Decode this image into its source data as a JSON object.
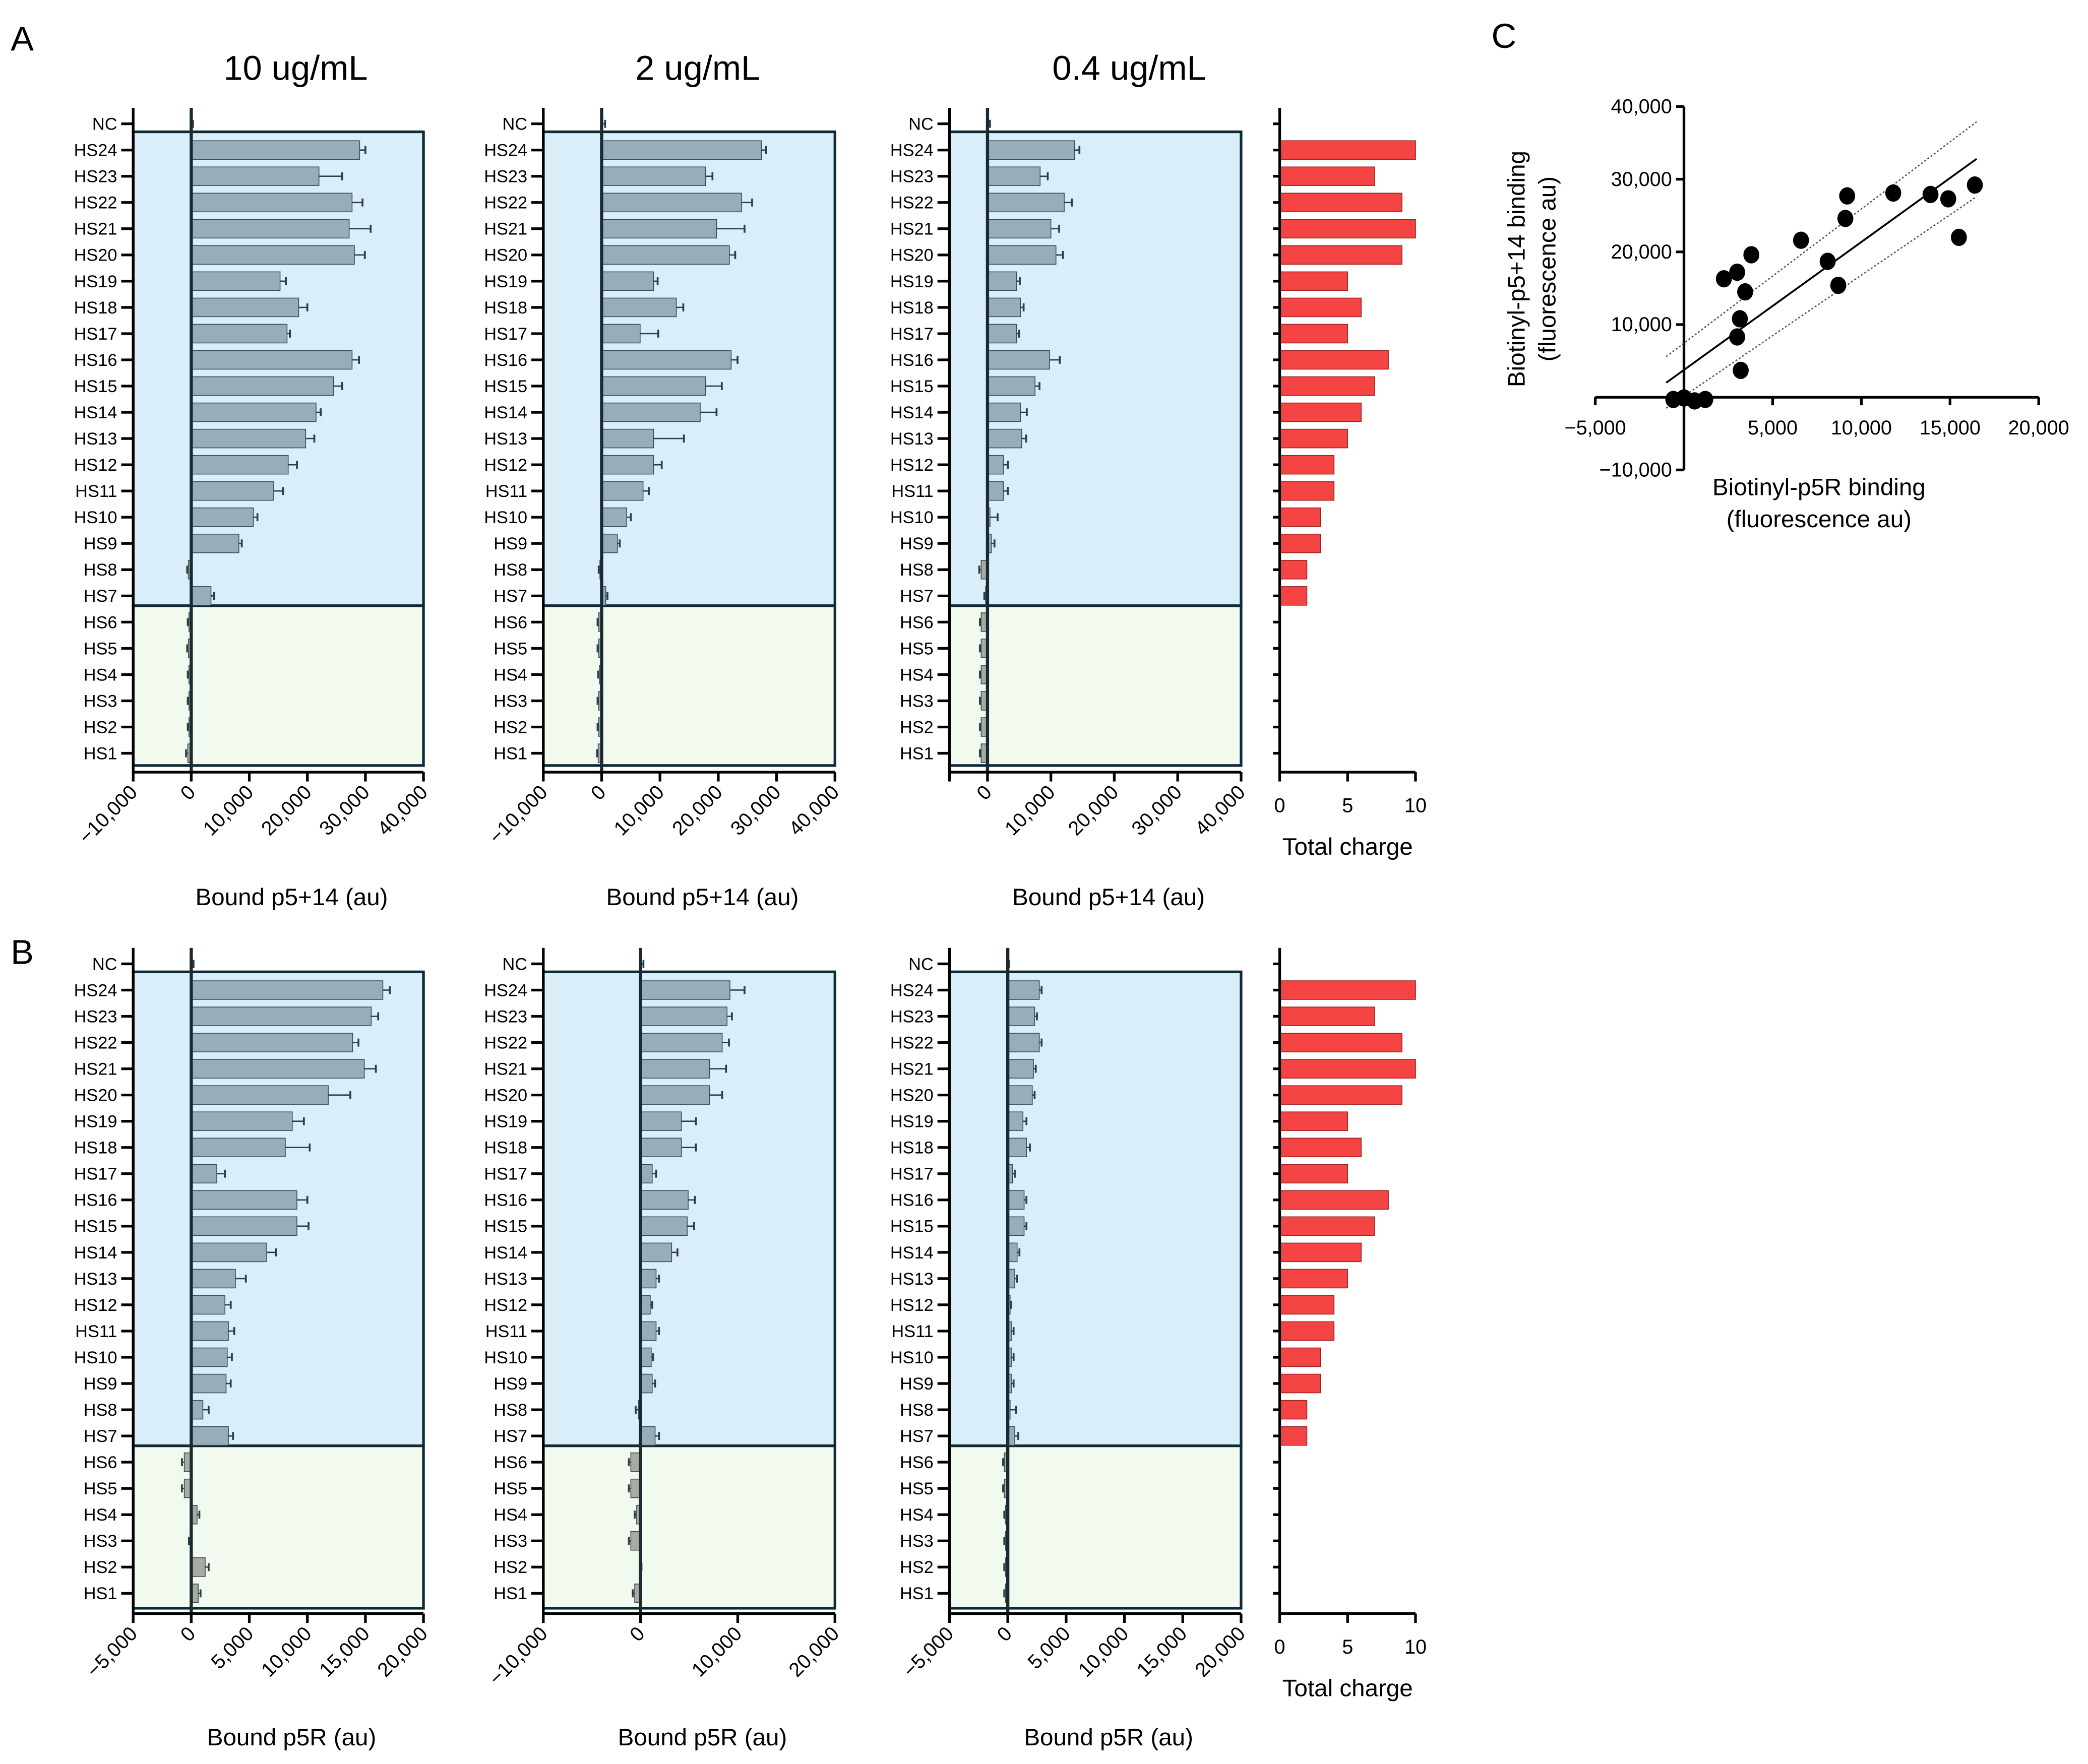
{
  "figure_labels": {
    "a": "A",
    "b": "B",
    "c": "C"
  },
  "colors": {
    "bar": "#97aeba",
    "bar_neg": "#a8aca0",
    "blue_region": "#daeef9",
    "green_region": "#f2f9ee",
    "charge": "#f44444",
    "frame": "#0e2a36"
  },
  "chart_data": [
    {
      "id": "A1",
      "type": "bar",
      "orientation": "horizontal",
      "title": "10 ug/mL",
      "xlabel": "Bound p5+14 (au)",
      "xlim": [
        -10000,
        40000
      ],
      "xticks": [
        -10000,
        0,
        10000,
        20000,
        30000,
        40000
      ],
      "xtick_labels": [
        "−10,000",
        "0",
        "10,000",
        "20,000",
        "30,000",
        "40,000"
      ],
      "categories": [
        "NC",
        "HS24",
        "HS23",
        "HS22",
        "HS21",
        "HS20",
        "HS19",
        "HS18",
        "HS17",
        "HS16",
        "HS15",
        "HS14",
        "HS13",
        "HS12",
        "HS11",
        "HS10",
        "HS9",
        "HS8",
        "HS7",
        "HS6",
        "HS5",
        "HS4",
        "HS3",
        "HS2",
        "HS1"
      ],
      "values": [
        0,
        29000,
        22000,
        27700,
        27200,
        28100,
        15300,
        18500,
        16500,
        27700,
        24500,
        21500,
        19700,
        16700,
        14200,
        10700,
        8200,
        -500,
        3400,
        -400,
        -500,
        -400,
        -400,
        -400,
        -600
      ],
      "errors": [
        300,
        1000,
        4000,
        1800,
        3700,
        1800,
        1000,
        1500,
        500,
        1200,
        1500,
        800,
        1500,
        1500,
        1600,
        700,
        500,
        200,
        500,
        200,
        200,
        200,
        200,
        200,
        300
      ]
    },
    {
      "id": "A2",
      "type": "bar",
      "orientation": "horizontal",
      "title": "2 ug/mL",
      "xlabel": "Bound p5+14 (au)",
      "xlim": [
        -10000,
        40000
      ],
      "xticks": [
        -10000,
        0,
        10000,
        20000,
        30000,
        40000
      ],
      "xtick_labels": [
        "−10,000",
        "0",
        "10,000",
        "20,000",
        "30,000",
        "40,000"
      ],
      "categories": [
        "NC",
        "HS24",
        "HS23",
        "HS22",
        "HS21",
        "HS20",
        "HS19",
        "HS18",
        "HS17",
        "HS16",
        "HS15",
        "HS14",
        "HS13",
        "HS12",
        "HS11",
        "HS10",
        "HS9",
        "HS8",
        "HS7",
        "HS6",
        "HS5",
        "HS4",
        "HS3",
        "HS2",
        "HS1"
      ],
      "values": [
        200,
        27400,
        17800,
        24000,
        19700,
        21900,
        8900,
        12800,
        6600,
        22200,
        17800,
        16900,
        8900,
        8900,
        7100,
        4300,
        2700,
        -300,
        700,
        -500,
        -500,
        -400,
        -500,
        -500,
        -600
      ],
      "errors": [
        400,
        800,
        1200,
        1800,
        4800,
        1000,
        700,
        1200,
        3100,
        1100,
        2800,
        2800,
        5200,
        1400,
        1000,
        700,
        400,
        200,
        300,
        200,
        200,
        200,
        200,
        200,
        200
      ]
    },
    {
      "id": "A3",
      "type": "bar",
      "orientation": "horizontal",
      "title": "0.4 ug/mL",
      "xlabel": "Bound p5+14 (au)",
      "xlim": [
        -6000,
        40000
      ],
      "xticks": [
        -6000,
        0,
        10000,
        20000,
        30000,
        40000
      ],
      "xtick_labels": [
        "",
        "0",
        "10,000",
        "20,000",
        "30,000",
        "40,000"
      ],
      "categories": [
        "NC",
        "HS24",
        "HS23",
        "HS22",
        "HS21",
        "HS20",
        "HS19",
        "HS18",
        "HS17",
        "HS16",
        "HS15",
        "HS14",
        "HS13",
        "HS12",
        "HS11",
        "HS10",
        "HS9",
        "HS8",
        "HS7",
        "HS6",
        "HS5",
        "HS4",
        "HS3",
        "HS2",
        "HS1"
      ],
      "values": [
        100,
        13700,
        8300,
        12100,
        10000,
        10800,
        4600,
        5200,
        4600,
        9800,
        7500,
        5200,
        5400,
        2500,
        2500,
        400,
        600,
        -1000,
        -300,
        -1000,
        -1000,
        -1000,
        -1000,
        -1000,
        -1000
      ],
      "errors": [
        300,
        800,
        1200,
        1200,
        1300,
        1100,
        500,
        500,
        400,
        1600,
        700,
        1000,
        700,
        700,
        700,
        1200,
        500,
        300,
        200,
        200,
        200,
        200,
        200,
        200,
        200
      ]
    },
    {
      "id": "A4",
      "type": "bar",
      "orientation": "horizontal",
      "xlabel": "Total charge",
      "xlim": [
        0,
        10
      ],
      "xticks": [
        0,
        5,
        10
      ],
      "xtick_labels": [
        "0",
        "5",
        "10"
      ],
      "categories": [
        "NC",
        "HS24",
        "HS23",
        "HS22",
        "HS21",
        "HS20",
        "HS19",
        "HS18",
        "HS17",
        "HS16",
        "HS15",
        "HS14",
        "HS13",
        "HS12",
        "HS11",
        "HS10",
        "HS9",
        "HS8",
        "HS7",
        "HS6",
        "HS5",
        "HS4",
        "HS3",
        "HS2",
        "HS1"
      ],
      "values": [
        0,
        10,
        7,
        9,
        10,
        9,
        5,
        6,
        5,
        8,
        7,
        6,
        5,
        4,
        4,
        3,
        3,
        2,
        2,
        0,
        0,
        0,
        0,
        0,
        0
      ]
    },
    {
      "id": "B1",
      "type": "bar",
      "orientation": "horizontal",
      "xlabel": "Bound p5R (au)",
      "xlim": [
        -5000,
        20000
      ],
      "xticks": [
        -5000,
        0,
        5000,
        10000,
        15000,
        20000
      ],
      "xtick_labels": [
        "−5,000",
        "0",
        "5,000",
        "10,000",
        "15,000",
        "20,000"
      ],
      "categories": [
        "NC",
        "HS24",
        "HS23",
        "HS22",
        "HS21",
        "HS20",
        "HS19",
        "HS18",
        "HS17",
        "HS16",
        "HS15",
        "HS14",
        "HS13",
        "HS12",
        "HS11",
        "HS10",
        "HS9",
        "HS8",
        "HS7",
        "HS6",
        "HS5",
        "HS4",
        "HS3",
        "HS2",
        "HS1"
      ],
      "values": [
        0,
        16500,
        15500,
        13900,
        14900,
        11800,
        8700,
        8100,
        2200,
        9100,
        9100,
        6500,
        3800,
        2900,
        3200,
        3100,
        3000,
        1000,
        3200,
        -600,
        -600,
        500,
        -100,
        1200,
        600
      ],
      "errors": [
        200,
        600,
        600,
        500,
        1000,
        1900,
        1000,
        2100,
        700,
        900,
        1000,
        800,
        900,
        500,
        500,
        400,
        400,
        500,
        400,
        200,
        200,
        200,
        100,
        300,
        200
      ]
    },
    {
      "id": "B2",
      "type": "bar",
      "orientation": "horizontal",
      "xlabel": "Bound p5R (au)",
      "xlim": [
        -10000,
        20000
      ],
      "xticks": [
        -10000,
        0,
        10000,
        20000
      ],
      "xtick_labels": [
        "−10,000",
        "0",
        "10,000",
        "20,000"
      ],
      "categories": [
        "NC",
        "HS24",
        "HS23",
        "HS22",
        "HS21",
        "HS20",
        "HS19",
        "HS18",
        "HS17",
        "HS16",
        "HS15",
        "HS14",
        "HS13",
        "HS12",
        "HS11",
        "HS10",
        "HS9",
        "HS8",
        "HS7",
        "HS6",
        "HS5",
        "HS4",
        "HS3",
        "HS2",
        "HS1"
      ],
      "values": [
        100,
        9200,
        8900,
        8400,
        7100,
        7100,
        4200,
        4200,
        1200,
        4900,
        4800,
        3200,
        1600,
        1000,
        1600,
        1100,
        1200,
        -200,
        1500,
        -1000,
        -1000,
        -400,
        -1000,
        0,
        -600
      ],
      "errors": [
        200,
        1500,
        500,
        700,
        1700,
        1300,
        1500,
        1500,
        400,
        700,
        700,
        600,
        300,
        200,
        300,
        200,
        300,
        300,
        400,
        200,
        200,
        200,
        200,
        100,
        200
      ]
    },
    {
      "id": "B3",
      "type": "bar",
      "orientation": "horizontal",
      "xlabel": "Bound p5R (au)",
      "xlim": [
        -5000,
        20000
      ],
      "xticks": [
        -5000,
        0,
        5000,
        10000,
        15000,
        20000
      ],
      "xtick_labels": [
        "−5,000",
        "0",
        "5,000",
        "10,000",
        "15,000",
        "20,000"
      ],
      "categories": [
        "NC",
        "HS24",
        "HS23",
        "HS22",
        "HS21",
        "HS20",
        "HS19",
        "HS18",
        "HS17",
        "HS16",
        "HS15",
        "HS14",
        "HS13",
        "HS12",
        "HS11",
        "HS10",
        "HS9",
        "HS8",
        "HS7",
        "HS6",
        "HS5",
        "HS4",
        "HS3",
        "HS2",
        "HS1"
      ],
      "values": [
        0,
        2700,
        2300,
        2700,
        2200,
        2100,
        1300,
        1600,
        400,
        1400,
        1400,
        800,
        600,
        200,
        300,
        300,
        300,
        200,
        600,
        -300,
        -300,
        -200,
        -200,
        -200,
        -200
      ],
      "errors": [
        100,
        200,
        200,
        200,
        200,
        200,
        300,
        300,
        200,
        200,
        200,
        200,
        200,
        100,
        200,
        200,
        200,
        500,
        300,
        100,
        100,
        100,
        100,
        100,
        100
      ]
    },
    {
      "id": "B4",
      "type": "bar",
      "orientation": "horizontal",
      "xlabel": "Total charge",
      "xlim": [
        0,
        10
      ],
      "xticks": [
        0,
        5,
        10
      ],
      "xtick_labels": [
        "0",
        "5",
        "10"
      ],
      "categories": [
        "NC",
        "HS24",
        "HS23",
        "HS22",
        "HS21",
        "HS20",
        "HS19",
        "HS18",
        "HS17",
        "HS16",
        "HS15",
        "HS14",
        "HS13",
        "HS12",
        "HS11",
        "HS10",
        "HS9",
        "HS8",
        "HS7",
        "HS6",
        "HS5",
        "HS4",
        "HS3",
        "HS2",
        "HS1"
      ],
      "values": [
        0,
        10,
        7,
        9,
        10,
        9,
        5,
        6,
        5,
        8,
        7,
        6,
        5,
        4,
        4,
        3,
        3,
        2,
        2,
        0,
        0,
        0,
        0,
        0,
        0
      ]
    },
    {
      "id": "C",
      "type": "scatter",
      "xlabel": "Biotinyl-p5R binding",
      "xlabel2": "(fluorescence au)",
      "ylabel": "Biotinyl-p5+14 binding",
      "ylabel2": "(fluorescence au)",
      "xlim": [
        -5000,
        20000
      ],
      "ylim": [
        -10000,
        40000
      ],
      "xticks": [
        -5000,
        5000,
        10000,
        15000,
        20000
      ],
      "xtick_labels": [
        "−5,000",
        "5,000",
        "10,000",
        "15,000",
        "20,000"
      ],
      "yticks": [
        -10000,
        10000,
        20000,
        30000,
        40000
      ],
      "ytick_labels": [
        "−10,000",
        "10,000",
        "20,000",
        "30,000",
        "40,000"
      ],
      "points": [
        [
          -600,
          -300
        ],
        [
          0,
          -100
        ],
        [
          600,
          -500
        ],
        [
          1200,
          -300
        ],
        [
          2250,
          16300
        ],
        [
          3000,
          17200
        ],
        [
          3450,
          14500
        ],
        [
          3150,
          10800
        ],
        [
          3000,
          8300
        ],
        [
          3200,
          3700
        ],
        [
          3800,
          19600
        ],
        [
          6600,
          21600
        ],
        [
          8100,
          18700
        ],
        [
          8700,
          15400
        ],
        [
          9100,
          24600
        ],
        [
          9200,
          27700
        ],
        [
          11800,
          28100
        ],
        [
          13900,
          27900
        ],
        [
          14900,
          27300
        ],
        [
          15500,
          22000
        ],
        [
          16400,
          29200
        ]
      ],
      "fit_line": {
        "x": [
          -1000,
          16500
        ],
        "y": [
          2000,
          32800
        ]
      },
      "ci_upper": {
        "x": [
          -1000,
          16500
        ],
        "y": [
          5600,
          37900
        ]
      },
      "ci_lower": {
        "x": [
          -1000,
          16500
        ],
        "y": [
          -1500,
          27600
        ]
      }
    }
  ]
}
